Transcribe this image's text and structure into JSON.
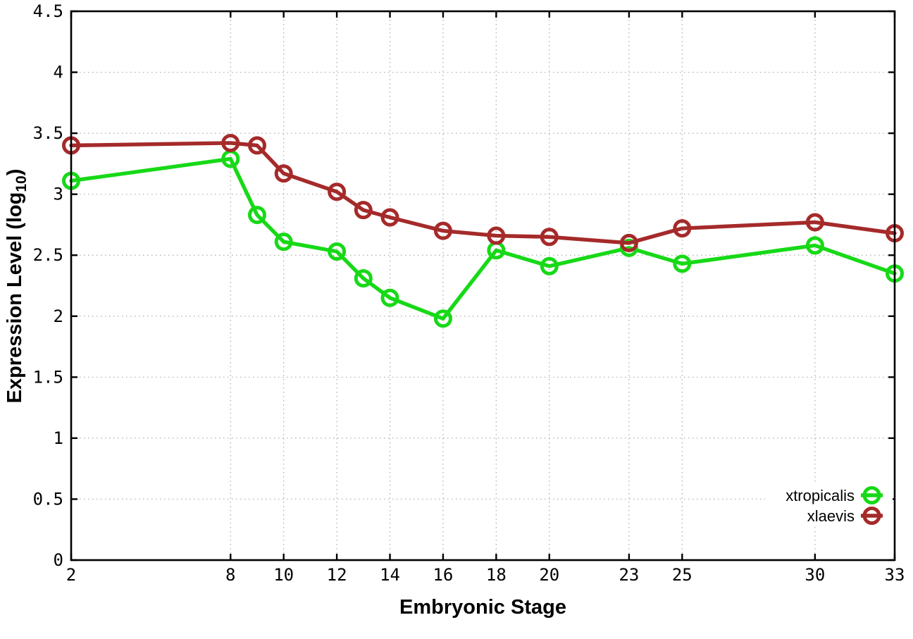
{
  "chart_data": {
    "type": "line",
    "title": "",
    "xlabel": "Embryonic Stage",
    "ylabel": "Expression Level (log10)",
    "ylabel_parts": {
      "pre": "Expression Level (log",
      "sub": "10",
      "post": ")"
    },
    "xlim": [
      2,
      33
    ],
    "ylim": [
      0,
      4.5
    ],
    "grid": true,
    "legend_position": "bottom-right",
    "xticks": [
      2,
      8,
      10,
      12,
      14,
      16,
      18,
      20,
      23,
      25,
      30,
      33
    ],
    "xtick_labels": [
      "2",
      "8",
      "10",
      "12",
      "14",
      "16",
      "18",
      "20",
      "23",
      "25",
      "30",
      "33"
    ],
    "yticks": [
      0,
      0.5,
      1,
      1.5,
      2,
      2.5,
      3,
      3.5,
      4,
      4.5
    ],
    "ytick_labels": [
      "0",
      "0.5",
      "1",
      "1.5",
      "2",
      "2.5",
      "3",
      "3.5",
      "4",
      "4.5"
    ],
    "x": [
      2,
      8,
      9,
      10,
      12,
      13,
      14,
      16,
      18,
      20,
      23,
      25,
      30,
      33
    ],
    "series": [
      {
        "name": "xtropicalis",
        "color": "#17d917",
        "marker": "open-circle",
        "values": [
          3.11,
          3.29,
          2.83,
          2.61,
          2.53,
          2.31,
          2.15,
          1.98,
          2.54,
          2.41,
          2.56,
          2.43,
          2.58,
          2.35
        ]
      },
      {
        "name": "xlaevis",
        "color": "#a52a2a",
        "marker": "open-circle",
        "values": [
          3.4,
          3.42,
          3.4,
          3.17,
          3.02,
          2.87,
          2.81,
          2.7,
          2.66,
          2.65,
          2.6,
          2.72,
          2.77,
          2.68
        ]
      }
    ],
    "axis_color": "#000000",
    "grid_color": "#aaaaaa"
  }
}
